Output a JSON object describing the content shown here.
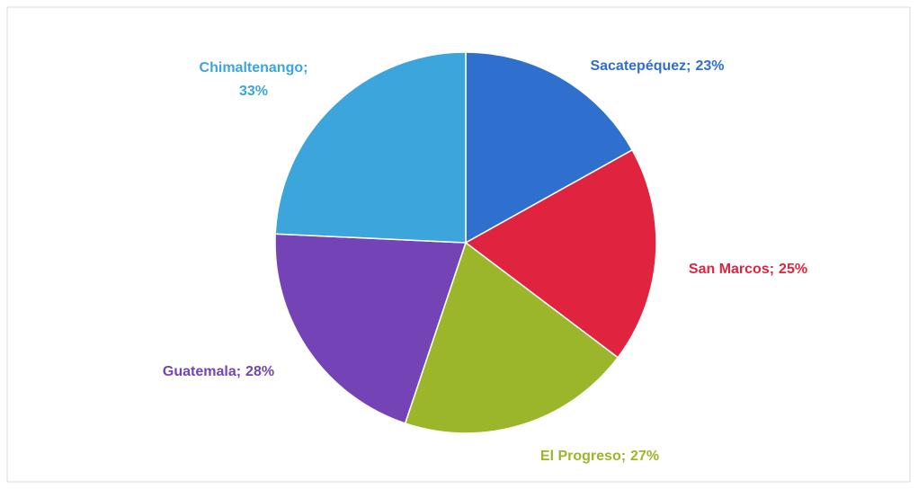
{
  "chart_data": {
    "type": "pie",
    "categories": [
      "Sacatepéquez",
      "San Marcos",
      "El Progreso",
      "Guatemala",
      "Chimaltenango"
    ],
    "values": [
      23,
      25,
      27,
      28,
      33
    ],
    "value_labels": [
      "23%",
      "25%",
      "27%",
      "28%",
      "33%"
    ],
    "label_separator": ";",
    "colors": [
      "#2f6fce",
      "#e0243f",
      "#9bb62a",
      "#7443b6",
      "#3ba5dc"
    ]
  }
}
